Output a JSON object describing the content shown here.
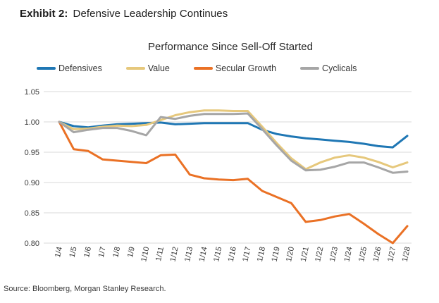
{
  "header": {
    "exhibit_label": "Exhibit 2:",
    "exhibit_title": "Defensive Leadership Continues"
  },
  "source": "Source: Bloomberg, Morgan Stanley Research.",
  "colors": {
    "defensives": "#1f77b4",
    "value": "#e6c87c",
    "secular_growth": "#ea7125",
    "cyclicals": "#a6a6a6",
    "gridline": "#d9d9d9"
  },
  "chart_data": {
    "type": "line",
    "title": "Performance Since Sell-Off Started",
    "categories": [
      "1/4",
      "1/5",
      "1/6",
      "1/7",
      "1/8",
      "1/9",
      "1/10",
      "1/11",
      "1/12",
      "1/13",
      "1/14",
      "1/15",
      "1/16",
      "1/17",
      "1/18",
      "1/19",
      "1/20",
      "1/21",
      "1/22",
      "1/23",
      "1/24",
      "1/25",
      "1/26",
      "1/27",
      "1/28"
    ],
    "series": [
      {
        "name": "Defensives",
        "color": "#1f77b4",
        "values": [
          1.0,
          0.993,
          0.991,
          0.994,
          0.996,
          0.997,
          0.998,
          0.999,
          0.996,
          0.997,
          0.998,
          0.998,
          0.998,
          0.998,
          0.987,
          0.98,
          0.976,
          0.973,
          0.971,
          0.969,
          0.967,
          0.964,
          0.96,
          0.958,
          0.977
        ]
      },
      {
        "name": "Value",
        "color": "#e6c87c",
        "values": [
          1.0,
          0.988,
          0.989,
          0.992,
          0.994,
          0.993,
          0.995,
          1.003,
          1.011,
          1.016,
          1.019,
          1.019,
          1.018,
          1.018,
          0.992,
          0.965,
          0.94,
          0.922,
          0.933,
          0.941,
          0.945,
          0.941,
          0.934,
          0.925,
          0.933
        ]
      },
      {
        "name": "Secular Growth",
        "color": "#ea7125",
        "values": [
          1.0,
          0.955,
          0.952,
          0.938,
          0.936,
          0.934,
          0.932,
          0.945,
          0.946,
          0.913,
          0.907,
          0.905,
          0.904,
          0.906,
          0.886,
          0.876,
          0.866,
          0.835,
          0.838,
          0.844,
          0.848,
          0.832,
          0.815,
          0.8,
          0.828
        ]
      },
      {
        "name": "Cyclicals",
        "color": "#a6a6a6",
        "values": [
          1.0,
          0.983,
          0.987,
          0.99,
          0.99,
          0.985,
          0.978,
          1.008,
          1.005,
          1.01,
          1.013,
          1.013,
          1.013,
          1.014,
          0.988,
          0.961,
          0.936,
          0.92,
          0.921,
          0.926,
          0.933,
          0.933,
          0.925,
          0.916,
          0.918
        ]
      }
    ],
    "ylim": [
      0.8,
      1.05
    ],
    "yticks": [
      1.05,
      1.0,
      0.95,
      0.9,
      0.85,
      0.8
    ],
    "grid": true,
    "legend_position": "top",
    "x_label_rotation": 78
  }
}
